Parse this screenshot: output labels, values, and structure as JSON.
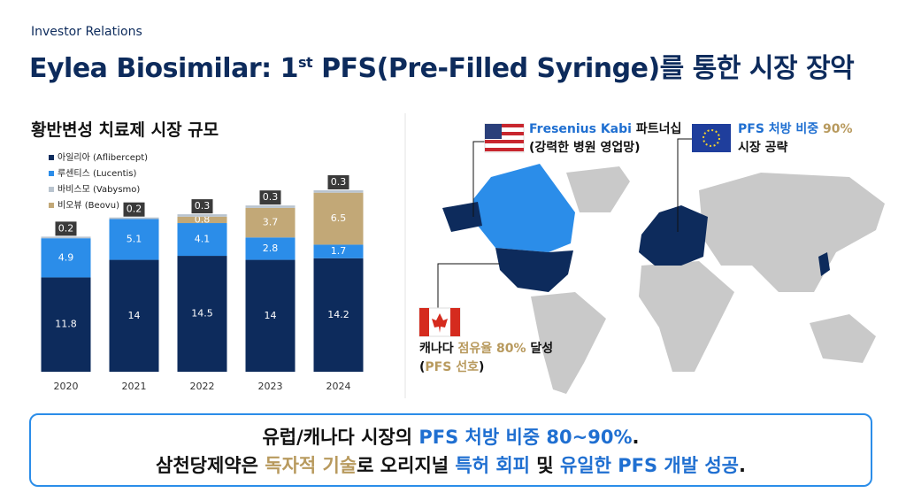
{
  "header": {
    "kicker": "Investor Relations",
    "title": [
      {
        "text": "Eylea Biosimilar: 1"
      },
      {
        "text": "st",
        "sup": true
      },
      {
        "text": " PFS(Pre-Filled Syringe)를 통한 시장 장악"
      }
    ]
  },
  "chart_data": {
    "type": "stacked-bar",
    "title": "황반변성 치료제 시장 규모",
    "categories": [
      "2020",
      "2021",
      "2022",
      "2023",
      "2024"
    ],
    "series": [
      {
        "name": "아일리아 (Aflibercept)",
        "color": "#0d2b5c",
        "values": [
          11.8,
          14,
          14.5,
          14,
          14.2
        ]
      },
      {
        "name": "루센티스 (Lucentis)",
        "color": "#2b8de9",
        "values": [
          4.9,
          5.1,
          4.1,
          2.8,
          1.7
        ]
      },
      {
        "name": "바비스모 (Vabysmo)",
        "color": "#b9c4cf",
        "values": [
          0.2,
          0.2,
          0.3,
          0.3,
          0.3
        ]
      },
      {
        "name": "비오뷰 (Beovu)",
        "color": "#c2a877",
        "values": [
          null,
          null,
          0.8,
          3.7,
          6.5
        ]
      }
    ],
    "legend": "top-left",
    "grid": false
  },
  "map": {
    "us_note": [
      [
        {
          "text": "Fresenius Kabi",
          "color": "#1f6fd1"
        },
        {
          "text": " 파트너십",
          "color": "#111111"
        }
      ],
      [
        {
          "text": "(강력한 병원 영업망)",
          "color": "#111111"
        }
      ]
    ],
    "eu_note": [
      [
        {
          "text": "PFS 처방 비중",
          "color": "#1f6fd1"
        },
        {
          "text": " 90%",
          "color": "#b89a5e"
        }
      ],
      [
        {
          "text": "시장 공략",
          "color": "#111111"
        }
      ]
    ],
    "ca_note": [
      [
        {
          "text": "캐나다 ",
          "color": "#111111"
        },
        {
          "text": "점유율 80%",
          "color": "#b89a5e"
        },
        {
          "text": " 달성",
          "color": "#111111"
        }
      ],
      [
        {
          "text": "(",
          "color": "#111111"
        },
        {
          "text": "PFS 선호",
          "color": "#b89a5e"
        },
        {
          "text": ")",
          "color": "#111111"
        }
      ]
    ]
  },
  "callout": [
    [
      {
        "text": "유럽/캐나다 시장의 ",
        "color": "#111111"
      },
      {
        "text": "PFS 처방 비중 80~90%",
        "color": "#1f6fd1"
      },
      {
        "text": ".",
        "color": "#111111"
      }
    ],
    [
      {
        "text": "삼천당제약은 ",
        "color": "#111111"
      },
      {
        "text": "독자적 기술",
        "color": "#b89a5e"
      },
      {
        "text": "로 오리지널 ",
        "color": "#111111"
      },
      {
        "text": "특허 회피",
        "color": "#1f6fd1"
      },
      {
        "text": " 및 ",
        "color": "#111111"
      },
      {
        "text": "유일한 PFS 개발 성공",
        "color": "#1f6fd1"
      },
      {
        "text": ".",
        "color": "#111111"
      }
    ]
  ]
}
